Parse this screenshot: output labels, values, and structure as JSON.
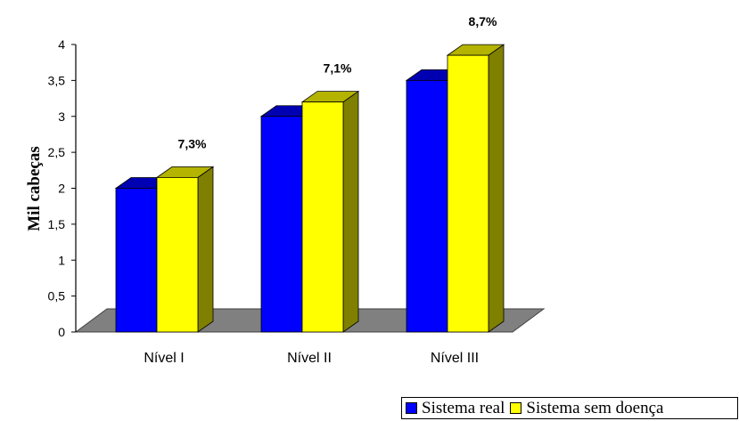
{
  "chart_data": {
    "type": "bar",
    "title": "",
    "xlabel": "",
    "ylabel": "Mil cabeças",
    "ylim": [
      0,
      4
    ],
    "yticks": [
      "0",
      "0,5",
      "1",
      "1,5",
      "2",
      "2,5",
      "3",
      "3,5",
      "4"
    ],
    "grid": false,
    "legend_position": "bottom-right",
    "categories": [
      "Nível I",
      "Nível II",
      "Nível III"
    ],
    "series": [
      {
        "name": "Sistema real",
        "color": "#0000ff",
        "values": [
          2.0,
          3.0,
          3.5
        ]
      },
      {
        "name": "Sistema sem doença",
        "color": "#ffff00",
        "values": [
          2.15,
          3.2,
          3.85
        ]
      }
    ],
    "annotations": [
      "7,3%",
      "7,1%",
      "8,7%"
    ]
  }
}
